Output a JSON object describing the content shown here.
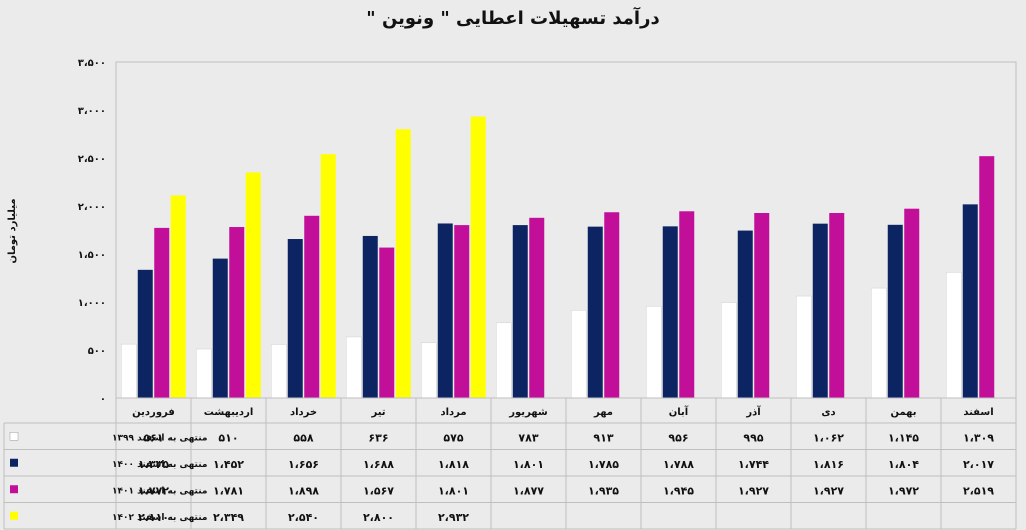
{
  "chart_data": {
    "type": "bar",
    "title": "درآمد تسهیلات اعطایی \" ونوین \"",
    "ylabel": "میلیارد تومان",
    "ylim": [
      0,
      3500
    ],
    "y_ticks": [
      0,
      500,
      1000,
      1500,
      2000,
      2500,
      3000,
      3500
    ],
    "y_tick_labels": [
      "۰",
      "۵۰۰",
      "۱،۰۰۰",
      "۱،۵۰۰",
      "۲،۰۰۰",
      "۲،۵۰۰",
      "۳،۰۰۰",
      "۳،۵۰۰"
    ],
    "categories": [
      "فروردین",
      "اردیبهشت",
      "خرداد",
      "تیر",
      "مرداد",
      "شهریور",
      "مهر",
      "آبان",
      "آذر",
      "دی",
      "بهمن",
      "اسفند"
    ],
    "series": [
      {
        "name": "منتهی به اسفند ۱۳۹۹",
        "color": "#ffffff",
        "values": [
          561,
          510,
          558,
          636,
          575,
          783,
          913,
          956,
          995,
          1062,
          1145,
          1309
        ],
        "labels": [
          "۵۶۱",
          "۵۱۰",
          "۵۵۸",
          "۶۳۶",
          "۵۷۵",
          "۷۸۳",
          "۹۱۳",
          "۹۵۶",
          "۹۹۵",
          "۱،۰۶۲",
          "۱،۱۴۵",
          "۱،۳۰۹"
        ]
      },
      {
        "name": "منتهی به اسفند ۱۴۰۰",
        "color": "#0d2463",
        "values": [
          1335,
          1452,
          1656,
          1688,
          1818,
          1801,
          1785,
          1788,
          1744,
          1816,
          1804,
          2017
        ],
        "labels": [
          "۱،۳۳۵",
          "۱،۴۵۲",
          "۱،۶۵۶",
          "۱،۶۸۸",
          "۱،۸۱۸",
          "۱،۸۰۱",
          "۱،۷۸۵",
          "۱،۷۸۸",
          "۱،۷۴۴",
          "۱،۸۱۶",
          "۱،۸۰۴",
          "۲،۰۱۷"
        ]
      },
      {
        "name": "منتهی به اسفند ۱۴۰۱",
        "color": "#c20f9a",
        "values": [
          1772,
          1781,
          1898,
          1567,
          1801,
          1877,
          1935,
          1945,
          1927,
          1927,
          1972,
          2519
        ],
        "labels": [
          "۱،۷۷۲",
          "۱،۷۸۱",
          "۱،۸۹۸",
          "۱،۵۶۷",
          "۱،۸۰۱",
          "۱،۸۷۷",
          "۱،۹۳۵",
          "۱،۹۴۵",
          "۱،۹۲۷",
          "۱،۹۲۷",
          "۱،۹۷۲",
          "۲،۵۱۹"
        ]
      },
      {
        "name": "منتهی به اسفند ۱۴۰۲",
        "color": "#ffff00",
        "values": [
          2110,
          2349,
          2540,
          2800,
          2932,
          null,
          null,
          null,
          null,
          null,
          null,
          null
        ],
        "labels": [
          "۲،۱۱۰",
          "۲،۳۴۹",
          "۲،۵۴۰",
          "۲،۸۰۰",
          "۲،۹۳۲",
          "",
          "",
          "",
          "",
          "",
          "",
          ""
        ]
      }
    ],
    "grid": false,
    "legend": "data-table-left"
  }
}
